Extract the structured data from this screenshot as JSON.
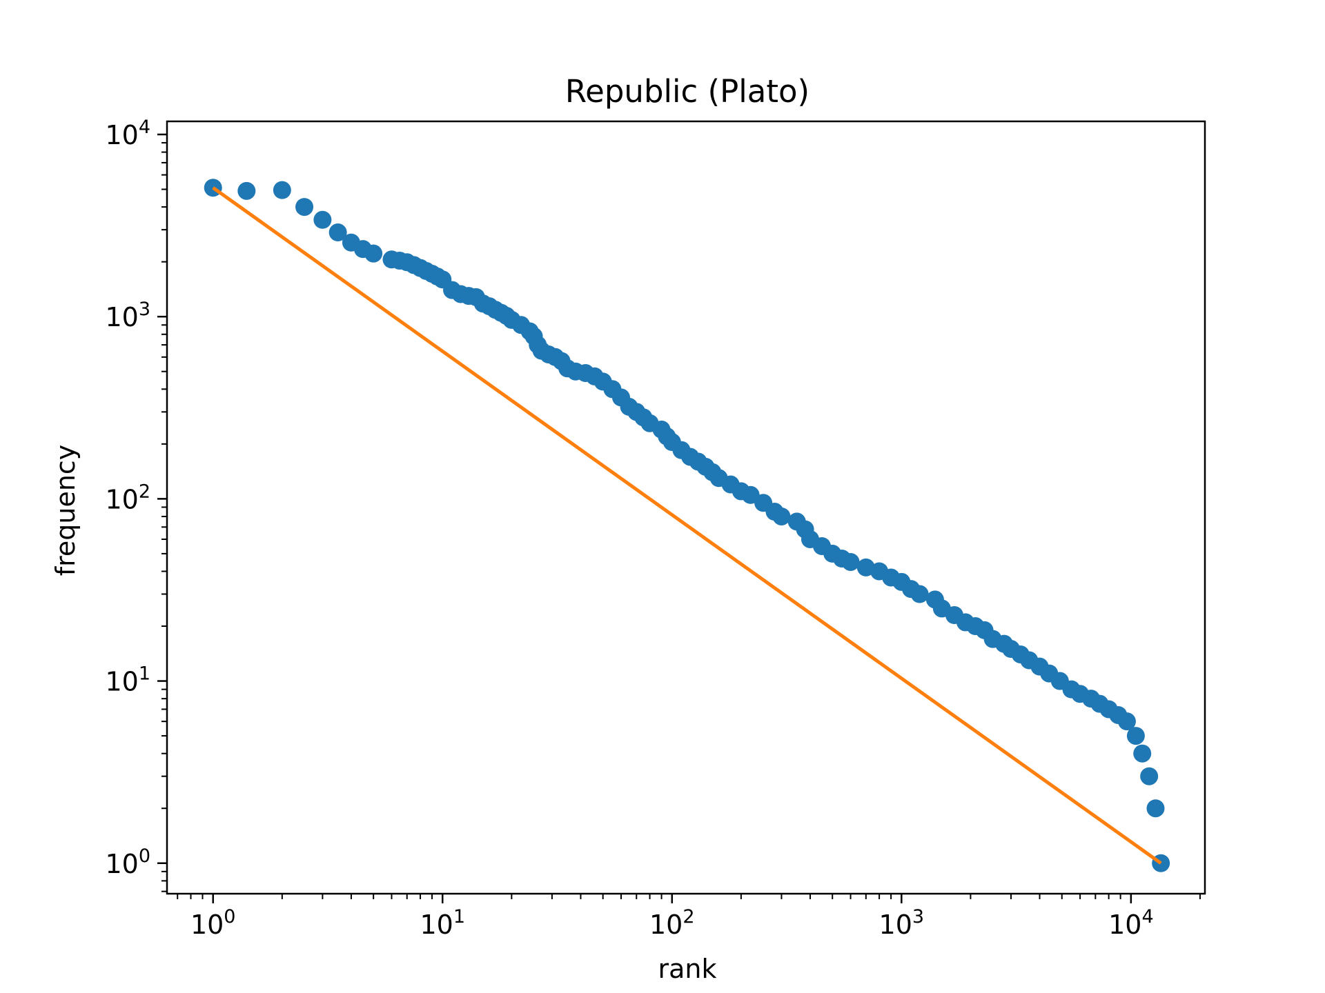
{
  "chart_data": {
    "type": "scatter",
    "title": "Republic (Plato)",
    "xlabel": "rank",
    "ylabel": "frequency",
    "xscale": "log",
    "yscale": "log",
    "xlim": [
      0.63,
      21000
    ],
    "ylim": [
      0.68,
      11800
    ],
    "grid": false,
    "x_ticks": [
      {
        "base": "10",
        "exp": "0",
        "value": 1
      },
      {
        "base": "10",
        "exp": "1",
        "value": 10
      },
      {
        "base": "10",
        "exp": "2",
        "value": 100
      },
      {
        "base": "10",
        "exp": "3",
        "value": 1000
      },
      {
        "base": "10",
        "exp": "4",
        "value": 10000
      }
    ],
    "y_ticks": [
      {
        "base": "10",
        "exp": "0",
        "value": 1
      },
      {
        "base": "10",
        "exp": "1",
        "value": 10
      },
      {
        "base": "10",
        "exp": "2",
        "value": 100
      },
      {
        "base": "10",
        "exp": "3",
        "value": 1000
      },
      {
        "base": "10",
        "exp": "4",
        "value": 10000
      }
    ],
    "series": [
      {
        "kind": "scatter",
        "color": "#1f77b4",
        "points": [
          [
            1,
            5100
          ],
          [
            2,
            4950
          ],
          [
            3,
            3400
          ],
          [
            4,
            2550
          ],
          [
            5,
            2220
          ],
          [
            6,
            2060
          ],
          [
            7,
            1990
          ],
          [
            8,
            1850
          ],
          [
            9,
            1720
          ],
          [
            10,
            1600
          ],
          [
            11,
            1400
          ],
          [
            12,
            1330
          ],
          [
            13,
            1300
          ],
          [
            14,
            1280
          ],
          [
            15,
            1180
          ],
          [
            16,
            1140
          ],
          [
            17,
            1090
          ],
          [
            18,
            1050
          ],
          [
            19,
            1010
          ],
          [
            20,
            960
          ],
          [
            22,
            900
          ],
          [
            24,
            830
          ],
          [
            25,
            780
          ],
          [
            26,
            700
          ],
          [
            27,
            650
          ],
          [
            29,
            620
          ],
          [
            31,
            600
          ],
          [
            33,
            570
          ],
          [
            35,
            520
          ],
          [
            38,
            500
          ],
          [
            42,
            490
          ],
          [
            46,
            470
          ],
          [
            50,
            440
          ],
          [
            55,
            400
          ],
          [
            60,
            360
          ],
          [
            65,
            320
          ],
          [
            70,
            300
          ],
          [
            75,
            280
          ],
          [
            80,
            260
          ],
          [
            90,
            240
          ],
          [
            95,
            220
          ],
          [
            100,
            205
          ],
          [
            110,
            185
          ],
          [
            120,
            170
          ],
          [
            130,
            160
          ],
          [
            140,
            150
          ],
          [
            150,
            140
          ],
          [
            160,
            130
          ],
          [
            180,
            120
          ],
          [
            200,
            110
          ],
          [
            220,
            105
          ],
          [
            250,
            95
          ],
          [
            280,
            85
          ],
          [
            300,
            80
          ],
          [
            350,
            75
          ],
          [
            380,
            68
          ],
          [
            400,
            60
          ],
          [
            450,
            55
          ],
          [
            500,
            50
          ],
          [
            550,
            47
          ],
          [
            600,
            45
          ],
          [
            700,
            42
          ],
          [
            800,
            40
          ],
          [
            900,
            37
          ],
          [
            1000,
            35
          ],
          [
            1100,
            32
          ],
          [
            1200,
            30
          ],
          [
            1400,
            28
          ],
          [
            1500,
            25
          ],
          [
            1700,
            23
          ],
          [
            1900,
            21
          ],
          [
            2100,
            20
          ],
          [
            2300,
            19
          ],
          [
            2500,
            17
          ],
          [
            2800,
            16
          ],
          [
            3000,
            15
          ],
          [
            3300,
            14
          ],
          [
            3600,
            13
          ],
          [
            4000,
            12
          ],
          [
            4400,
            11
          ],
          [
            4900,
            10
          ],
          [
            5500,
            9
          ],
          [
            6000,
            8.5
          ],
          [
            6700,
            8
          ],
          [
            7300,
            7.5
          ],
          [
            8000,
            7
          ],
          [
            8800,
            6.5
          ],
          [
            9600,
            6
          ],
          [
            10500,
            5
          ],
          [
            11200,
            4
          ],
          [
            12000,
            3
          ],
          [
            12800,
            2
          ],
          [
            13500,
            1
          ],
          [
            1.4,
            4900
          ],
          [
            2.5,
            4000
          ],
          [
            3.5,
            2900
          ],
          [
            4.5,
            2350
          ],
          [
            6.5,
            2030
          ],
          [
            7.5,
            1920
          ],
          [
            8.5,
            1780
          ],
          [
            9.5,
            1660
          ]
        ]
      },
      {
        "kind": "line",
        "color": "#ff7f0e",
        "points": [
          [
            1,
            5100
          ],
          [
            13500,
            1
          ]
        ]
      }
    ]
  }
}
